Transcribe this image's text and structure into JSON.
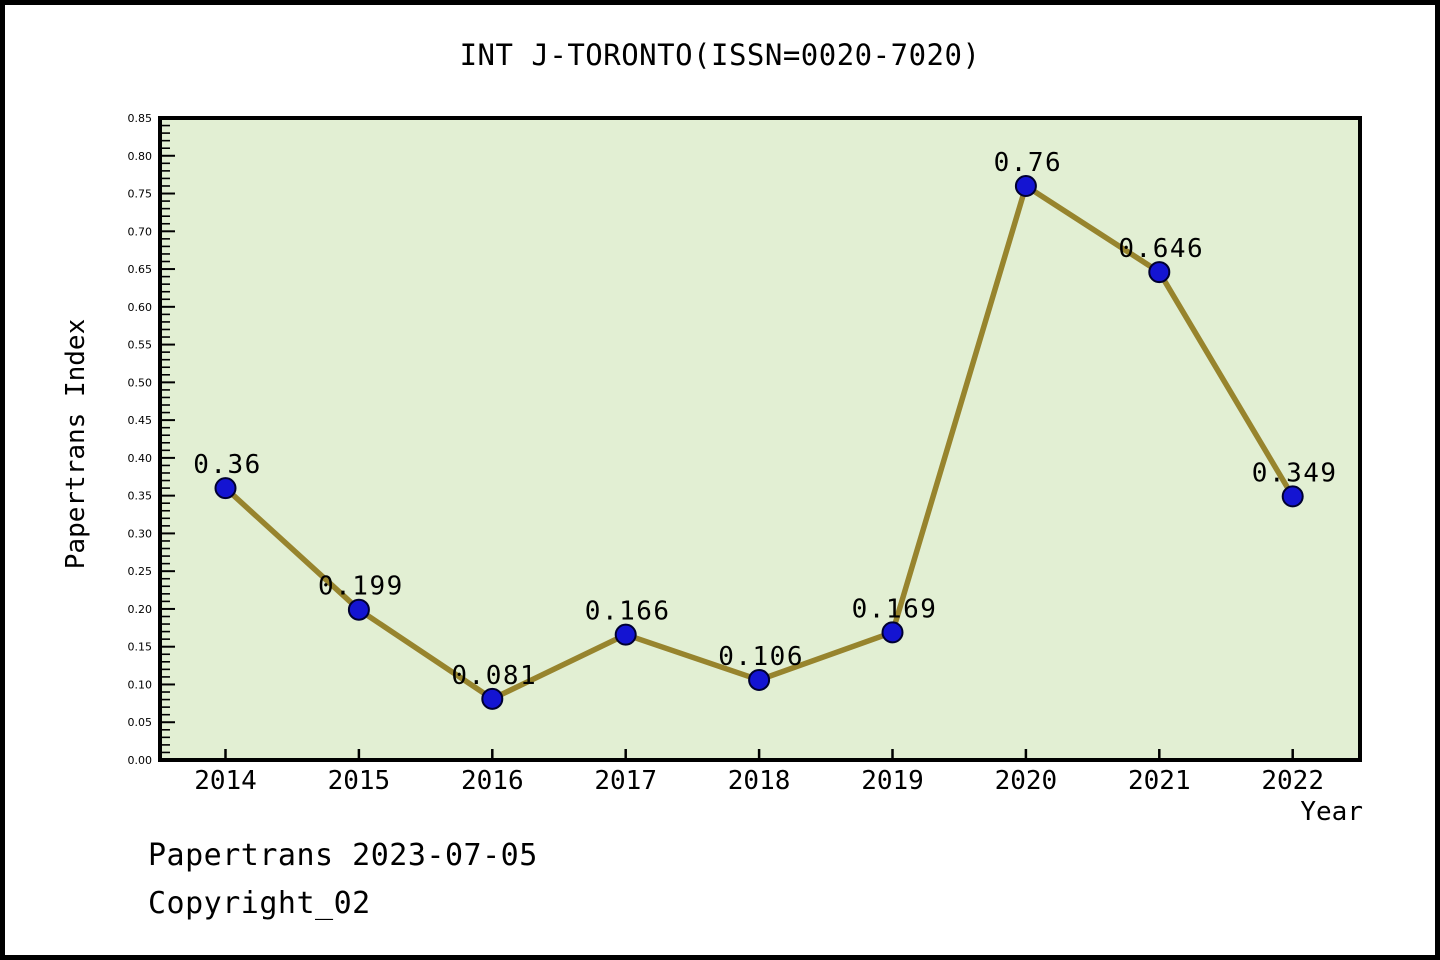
{
  "page": {
    "title": "INT J-TORONTO(ISSN=0020-7020)",
    "footer_line1": "Papertrans 2023-07-05",
    "footer_line2": "Copyright_02"
  },
  "chart_data": {
    "type": "line",
    "title": "INT J-TORONTO(ISSN=0020-7020)",
    "xlabel": "Year",
    "ylabel": "Papertrans Index",
    "categories": [
      2014,
      2015,
      2016,
      2017,
      2018,
      2019,
      2020,
      2021,
      2022
    ],
    "values": [
      0.36,
      0.199,
      0.081,
      0.166,
      0.106,
      0.169,
      0.76,
      0.646,
      0.349
    ],
    "point_labels": [
      "0.36",
      "0.199",
      "0.081",
      "0.166",
      "0.106",
      "0.169",
      "0.76",
      "0.646",
      "0.349"
    ],
    "ylim": [
      0,
      0.85
    ],
    "y_major_step": 0.05,
    "y_minor_step": 0.01,
    "grid": false,
    "legend_position": "none",
    "colors": {
      "plot_bg": "#e2efd3",
      "line": "#97842d",
      "marker_fill": "#1414d2",
      "marker_edge": "#000030",
      "axis": "#000000",
      "text": "#000000"
    }
  }
}
